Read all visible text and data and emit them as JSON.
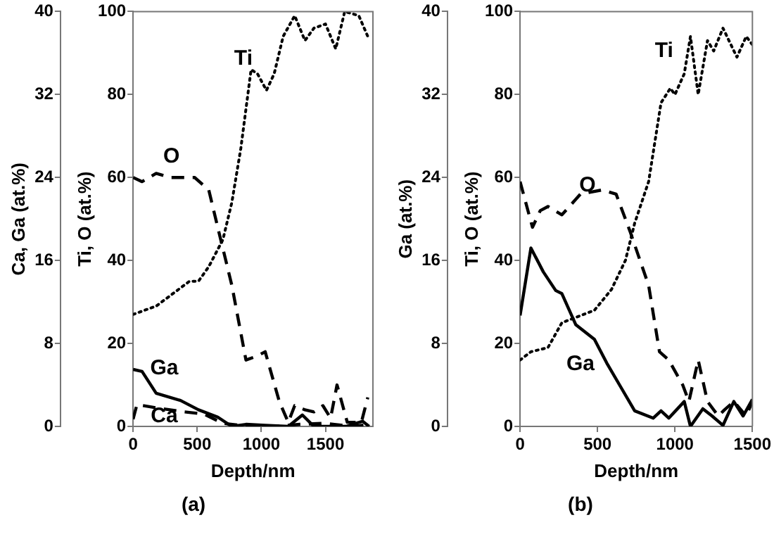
{
  "chart_data": [
    {
      "type": "line",
      "xlabel": "Depth/nm",
      "ylabel": "Ca, Ga (at.%)",
      "y2label": "Ti, O (at.%)",
      "annotations": [
        "(a)"
      ],
      "legend": false,
      "grid": false,
      "marker": "none",
      "xlim": [
        0,
        1870
      ],
      "xticks": [
        0,
        500,
        1000,
        1500
      ],
      "ylim": [
        0,
        40
      ],
      "yticks": [
        0,
        8,
        16,
        24,
        32,
        40
      ],
      "y2lim": [
        0,
        100
      ],
      "y2ticks": [
        0,
        20,
        40,
        60,
        80,
        100
      ],
      "series": [
        {
          "name": "Ti",
          "color": "#000000",
          "line_style": "dotted",
          "axis": "y2",
          "x": [
            0,
            180,
            440,
            510,
            590,
            700,
            770,
            840,
            920,
            970,
            1040,
            1100,
            1170,
            1260,
            1340,
            1410,
            1500,
            1580,
            1650,
            1760,
            1830
          ],
          "values": [
            27,
            29,
            35,
            35,
            38.5,
            45,
            54,
            67,
            86,
            85,
            81,
            85,
            94,
            99,
            93,
            96,
            97,
            91,
            100,
            99,
            94
          ]
        },
        {
          "name": "O",
          "color": "#000000",
          "line_style": "dashed",
          "axis": "y2",
          "x": [
            0,
            70,
            180,
            290,
            480,
            590,
            660,
            770,
            880,
            970,
            1030,
            1140,
            1210,
            1260,
            1340,
            1410,
            1480,
            1540,
            1590,
            1670,
            1780,
            1830
          ],
          "values": [
            60,
            59,
            61,
            60,
            60,
            57,
            48,
            34,
            16,
            17,
            18,
            6,
            1,
            5,
            4,
            3.5,
            5,
            2,
            10,
            1,
            1,
            7
          ]
        },
        {
          "name": "Ga",
          "color": "#000000",
          "line_style": "solid",
          "x": [
            0,
            70,
            180,
            370,
            510,
            660,
            770,
            880,
            1030,
            1210,
            1320,
            1410,
            1520,
            1660,
            1790,
            1840
          ],
          "values": [
            5.5,
            5.3,
            3.2,
            2.5,
            1.6,
            0.9,
            0,
            0.2,
            0.1,
            0,
            1.1,
            0,
            0,
            0,
            0.5,
            0
          ]
        },
        {
          "name": "Ca",
          "color": "#000000",
          "line_style": "dashed",
          "x": [
            0,
            30,
            180,
            400,
            550,
            700,
            900,
            1100,
            1300,
            1500,
            1700,
            1860
          ],
          "values": [
            0.7,
            2.1,
            1.8,
            1.4,
            1.2,
            0.3,
            0,
            0,
            0.2,
            0.3,
            0,
            0.2
          ]
        }
      ]
    },
    {
      "type": "line",
      "xlabel": "Depth/nm",
      "ylabel": "Ga (at.%)",
      "y2label": "Ti, O (at.%)",
      "annotations": [
        "(b)"
      ],
      "legend": false,
      "grid": false,
      "marker": "none",
      "xlim": [
        0,
        1500
      ],
      "xticks": [
        0,
        500,
        1000,
        1500
      ],
      "ylim": [
        0,
        40
      ],
      "yticks": [
        0,
        8,
        16,
        24,
        32,
        40
      ],
      "y2lim": [
        0,
        100
      ],
      "y2ticks": [
        0,
        20,
        40,
        60,
        80,
        100
      ],
      "series": [
        {
          "name": "Ti",
          "color": "#000000",
          "line_style": "dotted",
          "axis": "y2",
          "x": [
            0,
            70,
            180,
            270,
            480,
            590,
            680,
            740,
            830,
            910,
            970,
            1000,
            1060,
            1100,
            1150,
            1210,
            1250,
            1310,
            1400,
            1460,
            1500
          ],
          "values": [
            16,
            18,
            19,
            25,
            28,
            33,
            40,
            49,
            59,
            78,
            81.5,
            80,
            85,
            94,
            80,
            93,
            90.5,
            96,
            89,
            94,
            92
          ]
        },
        {
          "name": "O",
          "color": "#000000",
          "line_style": "dashed",
          "axis": "y2",
          "x": [
            0,
            80,
            130,
            180,
            270,
            390,
            530,
            620,
            710,
            830,
            900,
            960,
            1050,
            1090,
            1150,
            1210,
            1280,
            1320,
            1380,
            1460,
            1500
          ],
          "values": [
            59,
            48,
            52,
            53,
            51,
            56,
            57,
            56,
            47,
            34,
            18,
            16,
            10,
            6,
            16,
            6,
            2.5,
            4,
            6,
            2.5,
            6
          ]
        },
        {
          "name": "Ga",
          "color": "#000000",
          "line_style": "solid",
          "x": [
            0,
            70,
            150,
            230,
            270,
            360,
            480,
            560,
            650,
            740,
            860,
            910,
            960,
            1060,
            1100,
            1180,
            1240,
            1310,
            1380,
            1440,
            1500
          ],
          "values": [
            10.7,
            17.2,
            14.9,
            13.1,
            12.8,
            9.8,
            8.4,
            6.1,
            3.8,
            1.5,
            0.8,
            1.5,
            0.8,
            2.4,
            0,
            1.7,
            1,
            0.1,
            2.4,
            1,
            2.6
          ]
        }
      ]
    }
  ]
}
